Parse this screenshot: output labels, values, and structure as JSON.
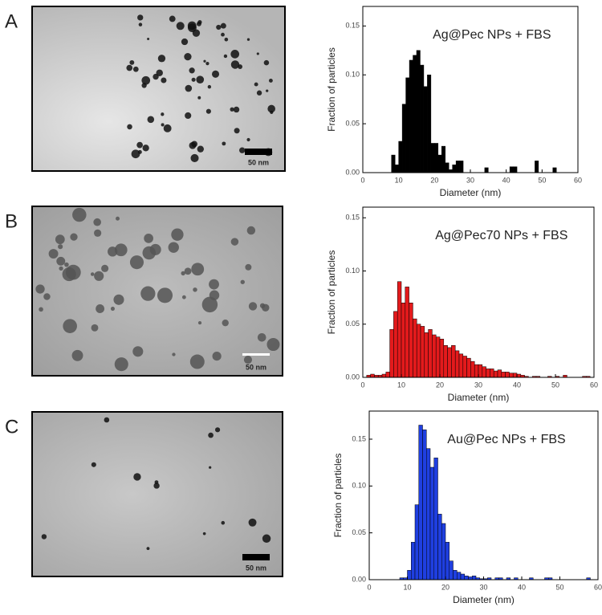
{
  "panels": [
    {
      "label": "A",
      "scale_label": "50 nm"
    },
    {
      "label": "B",
      "scale_label": "50 nm"
    },
    {
      "label": "C",
      "scale_label": "50 nm"
    }
  ],
  "chart_data": [
    {
      "type": "histogram",
      "title": "Ag@Pec NPs + FBS",
      "xlabel": "Diameter (nm)",
      "ylabel": "Fraction of particles",
      "color": "#000000",
      "bins": [
        8,
        9,
        10,
        11,
        12,
        13,
        14,
        15,
        16,
        17,
        18,
        19,
        20,
        21,
        22,
        23,
        24,
        25,
        26,
        27,
        28,
        29,
        30,
        31,
        32,
        33,
        34,
        35,
        36,
        37,
        38,
        39,
        40,
        41,
        42,
        43,
        44,
        45,
        46,
        47,
        48,
        49,
        50,
        51,
        52,
        53,
        54
      ],
      "values": [
        0.018,
        0.008,
        0.032,
        0.07,
        0.097,
        0.115,
        0.12,
        0.125,
        0.11,
        0.088,
        0.1,
        0.03,
        0.03,
        0.018,
        0.027,
        0.01,
        0.003,
        0.008,
        0.012,
        0.012,
        0,
        0,
        0,
        0,
        0,
        0,
        0.005,
        0,
        0,
        0,
        0,
        0,
        0,
        0.006,
        0.006,
        0,
        0,
        0,
        0,
        0,
        0.012,
        0,
        0,
        0,
        0,
        0.005
      ],
      "xlim": [
        0,
        60
      ],
      "xticks": [
        0,
        10,
        20,
        30,
        40,
        50,
        60
      ],
      "ylim": [
        0,
        0.17
      ],
      "yticks": [
        {
          "value": 0,
          "label": "0.00"
        },
        {
          "value": 0.05,
          "label": "0.05"
        },
        {
          "value": 0.1,
          "label": "0.10"
        },
        {
          "value": 0.15,
          "label": "0.15"
        }
      ]
    },
    {
      "type": "histogram",
      "title": "Ag@Pec70 NPs + FBS",
      "xlabel": "Diameter (nm)",
      "ylabel": "Fraction of particles",
      "color": "#e31a1c",
      "bins": [
        1,
        2,
        3,
        4,
        5,
        6,
        7,
        8,
        9,
        10,
        11,
        12,
        13,
        14,
        15,
        16,
        17,
        18,
        19,
        20,
        21,
        22,
        23,
        24,
        25,
        26,
        27,
        28,
        29,
        30,
        31,
        32,
        33,
        34,
        35,
        36,
        37,
        38,
        39,
        40,
        41,
        42,
        43,
        44,
        45,
        46,
        47,
        48,
        49,
        50,
        51,
        52,
        53,
        54,
        55,
        56,
        57,
        58,
        59
      ],
      "values": [
        0.002,
        0.003,
        0.002,
        0.002,
        0.003,
        0.005,
        0.045,
        0.062,
        0.09,
        0.07,
        0.085,
        0.07,
        0.055,
        0.05,
        0.048,
        0.042,
        0.045,
        0.04,
        0.038,
        0.036,
        0.03,
        0.028,
        0.03,
        0.025,
        0.022,
        0.02,
        0.018,
        0.015,
        0.012,
        0.012,
        0.01,
        0.008,
        0.008,
        0.006,
        0.007,
        0.005,
        0.005,
        0.004,
        0.004,
        0.003,
        0.002,
        0.001,
        0,
        0.001,
        0.001,
        0,
        0,
        0.001,
        0,
        0.001,
        0,
        0.002,
        0,
        0,
        0,
        0,
        0.001,
        0.001
      ],
      "xlim": [
        0,
        60
      ],
      "xticks": [
        0,
        10,
        20,
        30,
        40,
        50,
        60
      ],
      "ylim": [
        0,
        0.16
      ],
      "yticks": [
        {
          "value": 0,
          "label": "0.00"
        },
        {
          "value": 0.05,
          "label": "0.05"
        },
        {
          "value": 0.1,
          "label": "0.10"
        },
        {
          "value": 0.15,
          "label": "0.15"
        }
      ]
    },
    {
      "type": "histogram",
      "title": "Au@Pec NPs + FBS",
      "xlabel": "Diameter (nm)",
      "ylabel": "Fraction of particles",
      "color": "#1f3fe0",
      "bins": [
        8,
        9,
        10,
        11,
        12,
        13,
        14,
        15,
        16,
        17,
        18,
        19,
        20,
        21,
        22,
        23,
        24,
        25,
        26,
        27,
        28,
        29,
        30,
        31,
        32,
        33,
        34,
        35,
        36,
        37,
        38,
        39,
        40,
        41,
        42,
        43,
        44,
        45,
        46,
        47,
        48,
        49,
        50,
        51,
        52,
        53,
        54,
        55,
        56,
        57,
        58
      ],
      "values": [
        0.002,
        0.002,
        0.01,
        0.04,
        0.08,
        0.165,
        0.16,
        0.14,
        0.12,
        0.13,
        0.07,
        0.06,
        0.04,
        0.02,
        0.01,
        0.008,
        0.006,
        0.004,
        0.003,
        0.004,
        0.002,
        0.001,
        0.001,
        0.002,
        0,
        0.002,
        0.002,
        0,
        0.002,
        0,
        0.002,
        0,
        0,
        0,
        0.002,
        0,
        0,
        0,
        0.002,
        0.002,
        0,
        0,
        0,
        0,
        0,
        0,
        0,
        0,
        0,
        0.002
      ],
      "xlim": [
        0,
        60
      ],
      "xticks": [
        0,
        10,
        20,
        30,
        40,
        50,
        60
      ],
      "ylim": [
        0,
        0.18
      ],
      "yticks": [
        {
          "value": 0,
          "label": "0.00"
        },
        {
          "value": 0.05,
          "label": "0.05"
        },
        {
          "value": 0.1,
          "label": "0.10"
        },
        {
          "value": 0.15,
          "label": "0.15"
        }
      ]
    }
  ]
}
